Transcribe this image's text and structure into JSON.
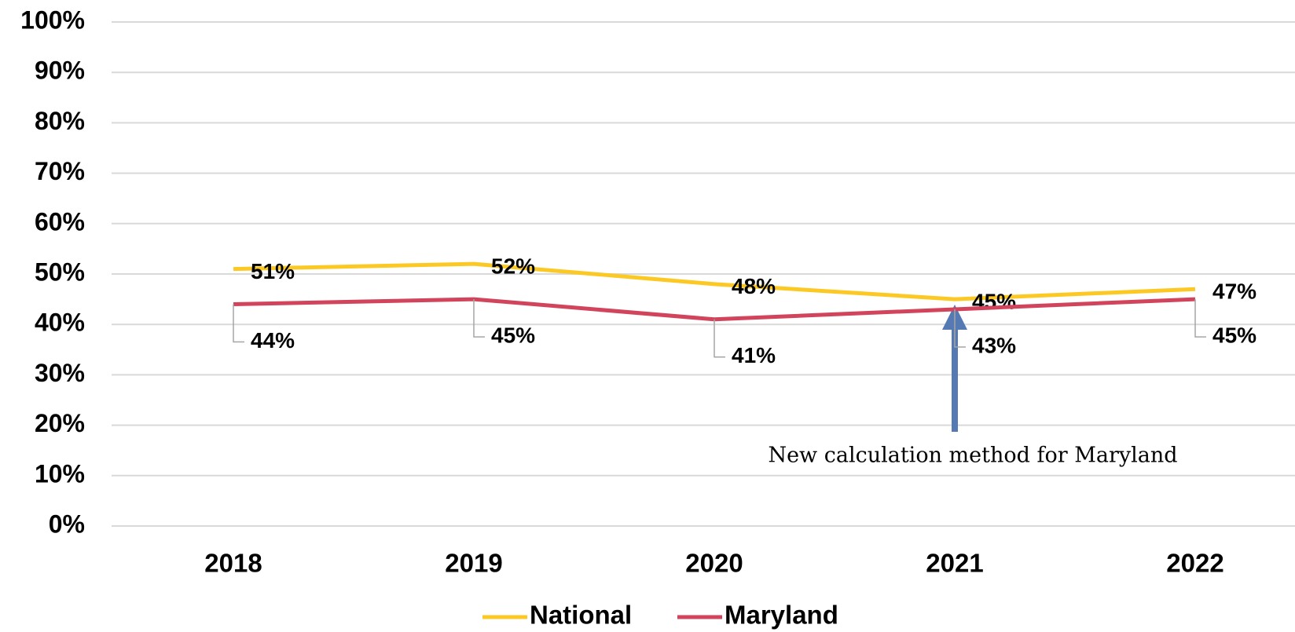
{
  "chart_data": {
    "type": "line",
    "categories": [
      "2018",
      "2019",
      "2020",
      "2021",
      "2022"
    ],
    "series": [
      {
        "name": "National",
        "color": "#fcc924",
        "values": [
          51,
          52,
          48,
          45,
          47
        ],
        "value_labels": [
          "51%",
          "52%",
          "48%",
          "45%",
          "47%"
        ]
      },
      {
        "name": "Maryland",
        "color": "#d1445b",
        "values": [
          44,
          45,
          41,
          43,
          45
        ],
        "value_labels": [
          "44%",
          "45%",
          "41%",
          "43%",
          "45%"
        ]
      }
    ],
    "ylim": [
      0,
      100
    ],
    "yticks": [
      {
        "value": 0,
        "label": "0%"
      },
      {
        "value": 10,
        "label": "10%"
      },
      {
        "value": 20,
        "label": "20%"
      },
      {
        "value": 30,
        "label": "30%"
      },
      {
        "value": 40,
        "label": "40%"
      },
      {
        "value": 50,
        "label": "50%"
      },
      {
        "value": 60,
        "label": "60%"
      },
      {
        "value": 70,
        "label": "70%"
      },
      {
        "value": 80,
        "label": "80%"
      },
      {
        "value": 90,
        "label": "90%"
      },
      {
        "value": 100,
        "label": "100%"
      }
    ],
    "grid": true,
    "legend": "bottom",
    "annotation": "New calculation method for Maryland"
  }
}
